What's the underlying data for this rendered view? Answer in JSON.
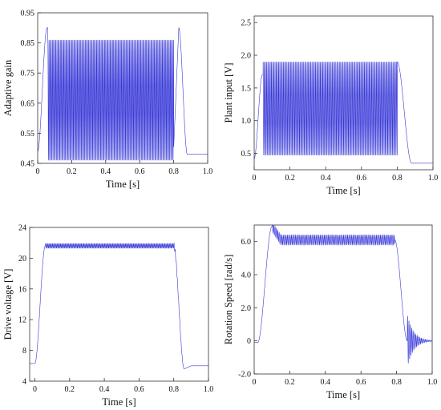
{
  "chart_data": [
    {
      "id": "adaptive-gain",
      "type": "line",
      "xlabel": "Time [s]",
      "ylabel": "Adaptive gain",
      "xlim": [
        0,
        1.0
      ],
      "ylim": [
        0.45,
        0.95
      ],
      "xticks": [
        "0",
        "0.2",
        "0.4",
        "0.6",
        "0.8",
        "1.0"
      ],
      "xtick_values": [
        0,
        0.2,
        0.4,
        0.6,
        0.8,
        1.0
      ],
      "yticks": [
        "0.45",
        "0.55",
        "0.65",
        "0.75",
        "0.85",
        "0.95"
      ],
      "ytick_values": [
        0.45,
        0.55,
        0.65,
        0.75,
        0.85,
        0.95
      ],
      "series": [
        {
          "style": "oscillating",
          "start_value": 0.49,
          "rise_end_time": 0.06,
          "osc_start": 0.06,
          "osc_end": 0.8,
          "upper_envelope": 0.86,
          "lower_envelope": 0.46,
          "peak_start": 0.9,
          "peak_end": 0.9,
          "peak_end_time": 0.83,
          "settle_time": 0.88,
          "final_value": 0.48,
          "frequency_hz": 150
        }
      ]
    },
    {
      "id": "plant-input",
      "type": "line",
      "xlabel": "Time [s]",
      "ylabel": "Plant input [V]",
      "xlim": [
        0,
        1.0
      ],
      "ylim": [
        0.25,
        2.6
      ],
      "xticks": [
        "0",
        "0.2",
        "0.4",
        "0.6",
        "0.8",
        "1.0"
      ],
      "xtick_values": [
        0,
        0.2,
        0.4,
        0.6,
        0.8,
        1.0
      ],
      "yticks": [
        "0.5",
        "1.0",
        "1.5",
        "2.0",
        "2.5"
      ],
      "ytick_values": [
        0.5,
        1.0,
        1.5,
        2.0,
        2.5
      ],
      "series": [
        {
          "style": "oscillating",
          "start_value": 0.42,
          "rise_end_time": 0.05,
          "osc_start": 0.05,
          "osc_end": 0.8,
          "upper_envelope": 1.9,
          "lower_envelope": 0.47,
          "peak_start": 1.7,
          "peak_end": 1.9,
          "peak_end_time": 0.8,
          "settle_time": 0.88,
          "final_value": 0.35,
          "frequency_hz": 150
        }
      ]
    },
    {
      "id": "drive-voltage",
      "type": "line",
      "xlabel": "Time [s]",
      "ylabel": "Drive voltage [V]",
      "xlim": [
        -0.03,
        1.0
      ],
      "ylim": [
        4,
        24
      ],
      "xticks": [
        "0",
        "0.2",
        "0.4",
        "0.6",
        "0.8",
        "1.0"
      ],
      "xtick_values": [
        0,
        0.2,
        0.4,
        0.6,
        0.8,
        1.0
      ],
      "yticks": [
        "4",
        "8",
        "12",
        "16",
        "20",
        "24"
      ],
      "ytick_values": [
        4,
        8,
        12,
        16,
        20,
        24
      ],
      "series": [
        {
          "style": "ripple",
          "start_value": 6.3,
          "rise_start": 0.0,
          "rise_end": 0.06,
          "plateau": 21.6,
          "ripple_amplitude": 0.3,
          "fall_start": 0.8,
          "fall_end": 0.86,
          "undershoot": 5.6,
          "final_value": 6.0,
          "frequency_hz": 150
        }
      ]
    },
    {
      "id": "rotation-speed",
      "type": "line",
      "xlabel": "Time [s]",
      "ylabel": "Rotation Speed [rad/s]",
      "xlim": [
        0,
        1.0
      ],
      "ylim": [
        -2.0,
        7.0
      ],
      "xticks": [
        "0",
        "0.2",
        "0.4",
        "0.6",
        "0.8",
        "1.0"
      ],
      "xtick_values": [
        0,
        0.2,
        0.4,
        0.6,
        0.8,
        1.0
      ],
      "yticks": [
        "-2.0",
        "0",
        "2.0",
        "4.0",
        "6.0"
      ],
      "ytick_values": [
        -2.0,
        0,
        2.0,
        4.0,
        6.0
      ],
      "series": [
        {
          "style": "speed",
          "start_value": -0.1,
          "rise_start": 0.02,
          "rise_end": 0.1,
          "overshoot": 6.9,
          "plateau": 6.1,
          "ripple_amplitude": 0.3,
          "fall_start": 0.79,
          "fall_end": 0.86,
          "decay_amplitude": 1.6,
          "final_value": 0.0,
          "frequency_hz": 130
        }
      ]
    }
  ]
}
